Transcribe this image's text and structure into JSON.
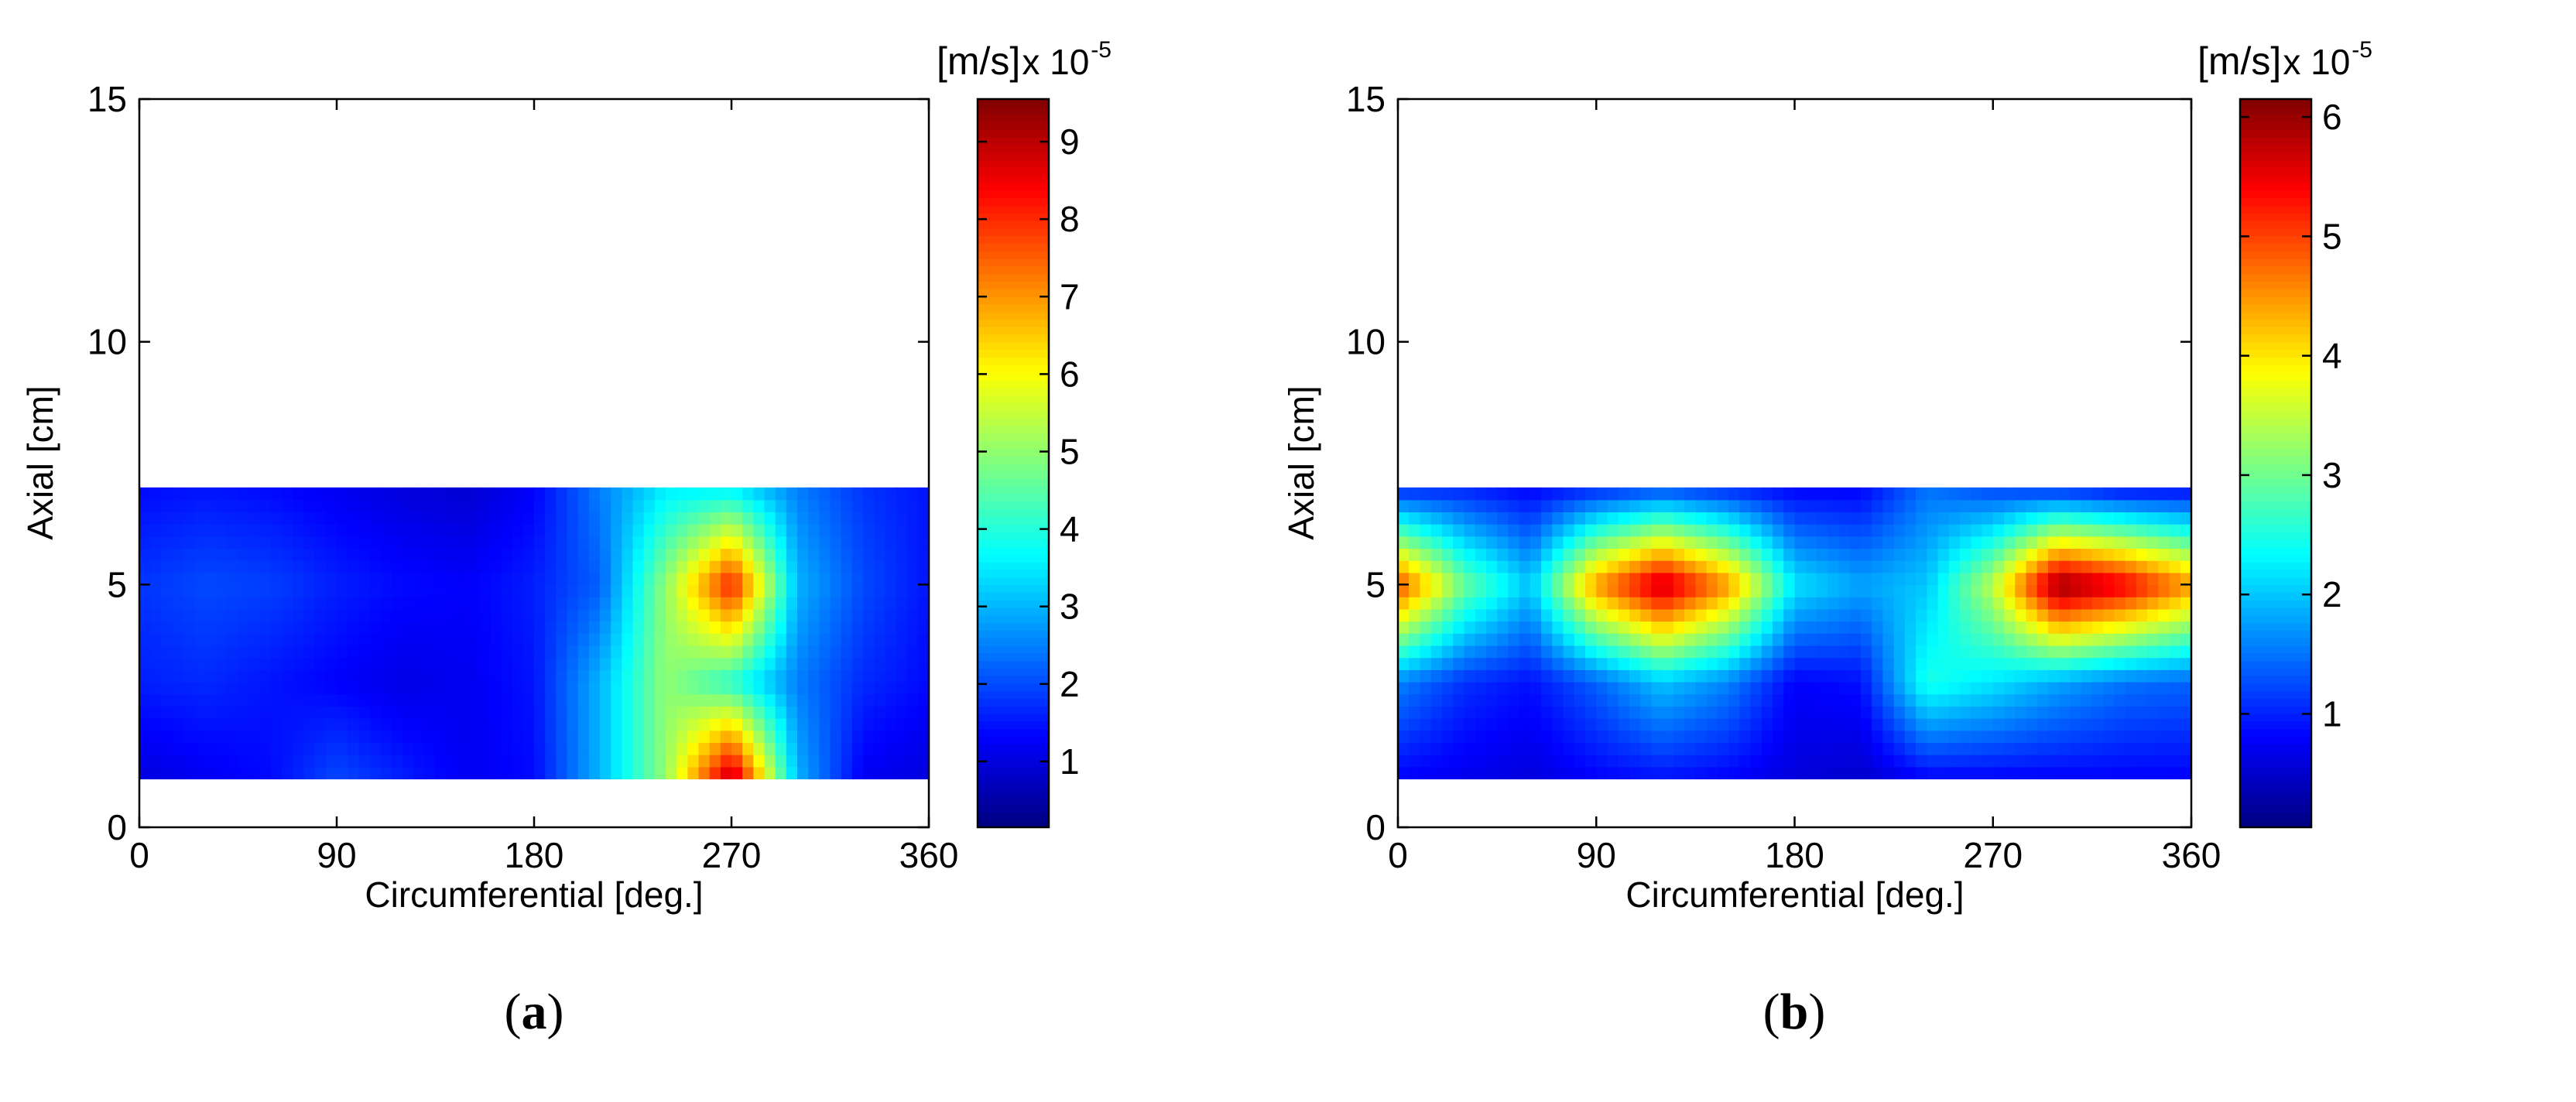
{
  "chart_data": [
    {
      "type": "heatmap",
      "panel_label": "a",
      "xlabel": "Circumferential [deg.]",
      "ylabel": "Axial [cm]",
      "xlim": [
        0,
        360
      ],
      "ylim": [
        0,
        15
      ],
      "xticks": [
        "0",
        "90",
        "180",
        "270",
        "360"
      ],
      "yticks": [
        "0",
        "5",
        "10",
        "15"
      ],
      "data_extent": {
        "x": [
          0,
          360
        ],
        "y": [
          1,
          7
        ]
      },
      "colorbar": {
        "label": "[m/s]",
        "multiplier": "x 10",
        "exponent": "-5",
        "range": [
          0.15,
          9.55
        ],
        "ticks": [
          "1",
          "2",
          "3",
          "4",
          "5",
          "6",
          "7",
          "8",
          "9"
        ],
        "colormap": "jet"
      },
      "grid": {
        "x": [
          0,
          30,
          60,
          90,
          120,
          150,
          180,
          210,
          240,
          270,
          300,
          330,
          360
        ],
        "y": [
          1,
          3,
          5,
          7
        ],
        "values": [
          [
            1.0,
            1.2,
            1.4,
            2.0,
            1.6,
            1.2,
            1.4,
            3.0,
            5.0,
            9.2,
            3.0,
            1.2,
            1.0
          ],
          [
            1.6,
            1.7,
            1.5,
            1.3,
            1.1,
            1.2,
            1.5,
            3.0,
            5.0,
            4.0,
            2.5,
            1.7,
            1.4
          ],
          [
            1.8,
            2.0,
            1.9,
            1.6,
            1.4,
            1.3,
            1.6,
            2.2,
            5.0,
            8.2,
            3.0,
            2.0,
            1.5
          ],
          [
            1.4,
            1.5,
            1.4,
            1.2,
            1.0,
            0.9,
            1.3,
            2.5,
            3.5,
            3.5,
            2.5,
            1.8,
            1.5
          ]
        ]
      }
    },
    {
      "type": "heatmap",
      "panel_label": "b",
      "xlabel": "Circumferential [deg.]",
      "ylabel": "Axial [cm]",
      "xlim": [
        0,
        360
      ],
      "ylim": [
        0,
        15
      ],
      "xticks": [
        "0",
        "90",
        "180",
        "270",
        "360"
      ],
      "yticks": [
        "0",
        "5",
        "10",
        "15"
      ],
      "data_extent": {
        "x": [
          0,
          360
        ],
        "y": [
          1,
          7
        ]
      },
      "colorbar": {
        "label": "[m/s]",
        "multiplier": "x 10",
        "exponent": "-5",
        "range": [
          0.05,
          6.15
        ],
        "ticks": [
          "1",
          "2",
          "3",
          "4",
          "5",
          "6"
        ],
        "colormap": "jet"
      },
      "grid": {
        "x": [
          0,
          30,
          60,
          90,
          120,
          150,
          180,
          210,
          240,
          270,
          300,
          330,
          360
        ],
        "y": [
          1,
          3,
          5,
          7
        ],
        "values": [
          [
            0.8,
            0.7,
            0.6,
            0.8,
            0.9,
            0.8,
            0.6,
            0.5,
            0.8,
            0.8,
            0.8,
            0.8,
            0.8
          ],
          [
            1.6,
            1.1,
            0.9,
            1.4,
            2.0,
            1.6,
            0.8,
            0.9,
            2.5,
            2.2,
            1.8,
            1.5,
            1.4
          ],
          [
            5.0,
            3.0,
            2.0,
            4.5,
            5.8,
            4.5,
            2.2,
            1.8,
            2.0,
            3.5,
            6.1,
            5.5,
            4.5
          ],
          [
            1.0,
            1.0,
            0.8,
            1.0,
            1.2,
            1.0,
            0.8,
            0.8,
            1.5,
            1.2,
            1.0,
            0.8,
            0.8
          ]
        ]
      }
    }
  ]
}
